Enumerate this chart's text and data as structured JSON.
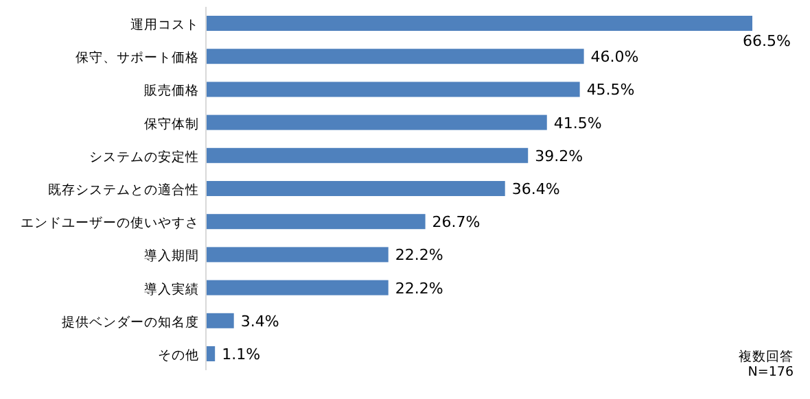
{
  "chart_data": {
    "type": "bar",
    "orientation": "horizontal",
    "color": "#4f81bd",
    "categories": [
      "運用コスト",
      "保守、サポート価格",
      "販売価格",
      "保守体制",
      "システムの安定性",
      "既存システムとの適合性",
      "エンドユーザーの使いやすさ",
      "導入期間",
      "導入実績",
      "提供ベンダーの知名度",
      "その他"
    ],
    "values": [
      66.5,
      46.0,
      45.5,
      41.5,
      39.2,
      36.4,
      26.7,
      22.2,
      22.2,
      3.4,
      1.1
    ],
    "value_labels": [
      "66.5%",
      "46.0%",
      "45.5%",
      "41.5%",
      "39.2%",
      "36.4%",
      "26.7%",
      "22.2%",
      "22.2%",
      "3.4%",
      "1.1%"
    ],
    "annotations": [
      "複数回答",
      "N=176"
    ]
  }
}
